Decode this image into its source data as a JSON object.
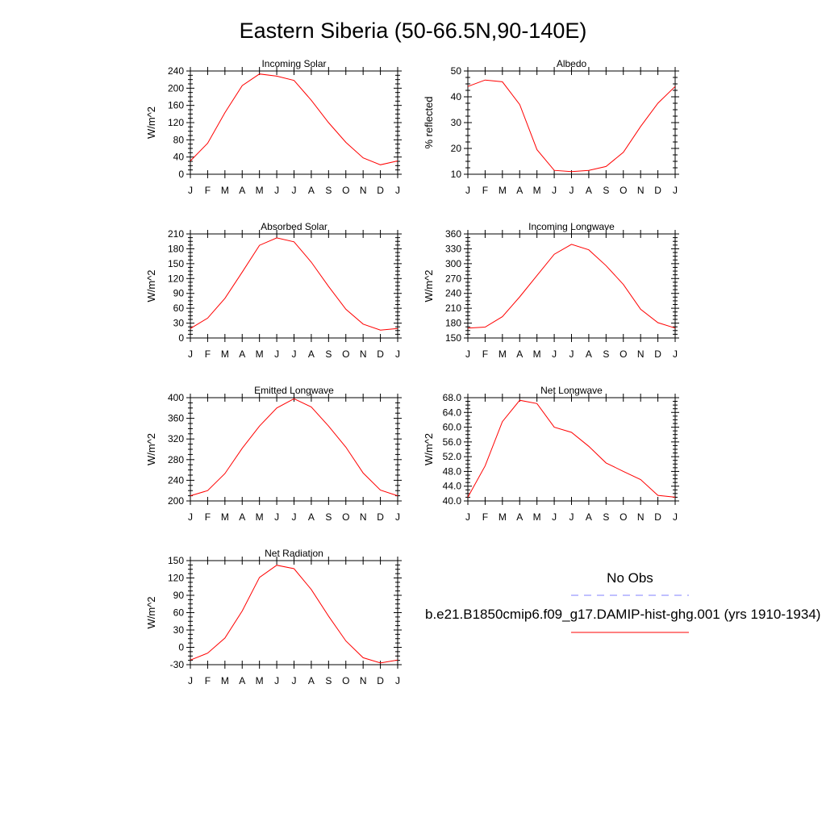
{
  "title": "Eastern Siberia (50-66.5N,90-140E)",
  "month_labels": [
    "J",
    "F",
    "M",
    "A",
    "M",
    "J",
    "J",
    "A",
    "S",
    "O",
    "N",
    "D",
    "J"
  ],
  "colors": {
    "model": "#ff0000",
    "obs": "#8080ff",
    "axes": "#000000"
  },
  "legend": {
    "obs_label": "No Obs",
    "model_label": "b.e21.B1850cmip6.f09_g17.DAMIP-hist-ghg.001 (yrs 1910-1934)"
  },
  "chart_data": [
    {
      "type": "line",
      "title": "Incoming Solar",
      "ylabel": "W/m^2",
      "ylim": [
        0,
        240
      ],
      "yticks": [
        "0",
        "40",
        "80",
        "120",
        "160",
        "200",
        "240"
      ],
      "x": [
        "J",
        "F",
        "M",
        "A",
        "M",
        "J",
        "J",
        "A",
        "S",
        "O",
        "N",
        "D",
        "J"
      ],
      "series": [
        {
          "values": [
            31,
            72,
            143,
            206,
            233,
            228,
            218,
            172,
            120,
            74,
            38,
            22,
            31
          ]
        }
      ]
    },
    {
      "type": "line",
      "title": "Albedo",
      "ylabel": "% reflected",
      "ylim": [
        10,
        50
      ],
      "yticks": [
        "10",
        "20",
        "30",
        "40",
        "50"
      ],
      "x": [
        "J",
        "F",
        "M",
        "A",
        "M",
        "J",
        "J",
        "A",
        "S",
        "O",
        "N",
        "D",
        "J"
      ],
      "series": [
        {
          "values": [
            44,
            46.5,
            45.8,
            37,
            19.5,
            11.5,
            11,
            11.5,
            13,
            18.5,
            28.5,
            37.5,
            44
          ]
        }
      ]
    },
    {
      "type": "line",
      "title": "Absorbed Solar",
      "ylabel": "W/m^2",
      "ylim": [
        0,
        210
      ],
      "yticks": [
        "0",
        "30",
        "60",
        "90",
        "120",
        "150",
        "180",
        "210"
      ],
      "x": [
        "J",
        "F",
        "M",
        "A",
        "M",
        "J",
        "J",
        "A",
        "S",
        "O",
        "N",
        "D",
        "J"
      ],
      "series": [
        {
          "values": [
            19,
            40,
            80,
            133,
            187,
            202,
            194,
            153,
            104,
            58,
            28,
            16,
            19
          ]
        }
      ]
    },
    {
      "type": "line",
      "title": "Incoming Longwave",
      "ylabel": "W/m^2",
      "ylim": [
        150,
        360
      ],
      "yticks": [
        "150",
        "180",
        "210",
        "240",
        "270",
        "300",
        "330",
        "360"
      ],
      "x": [
        "J",
        "F",
        "M",
        "A",
        "M",
        "J",
        "J",
        "A",
        "S",
        "O",
        "N",
        "D",
        "J"
      ],
      "series": [
        {
          "values": [
            170,
            172,
            193,
            233,
            276,
            319,
            339,
            328,
            296,
            258,
            208,
            181,
            170
          ]
        }
      ]
    },
    {
      "type": "line",
      "title": "Emitted Longwave",
      "ylabel": "W/m^2",
      "ylim": [
        200,
        400
      ],
      "yticks": [
        "200",
        "240",
        "280",
        "320",
        "360",
        "400"
      ],
      "x": [
        "J",
        "F",
        "M",
        "A",
        "M",
        "J",
        "J",
        "A",
        "S",
        "O",
        "N",
        "D",
        "J"
      ],
      "series": [
        {
          "values": [
            210,
            220,
            253,
            302,
            345,
            380,
            398,
            382,
            345,
            304,
            254,
            221,
            210
          ]
        }
      ]
    },
    {
      "type": "line",
      "title": "Net Longwave",
      "ylabel": "W/m^2",
      "ylim": [
        40,
        68
      ],
      "yticks": [
        "40.0",
        "44.0",
        "48.0",
        "52.0",
        "56.0",
        "60.0",
        "64.0",
        "68.0"
      ],
      "x": [
        "J",
        "F",
        "M",
        "A",
        "M",
        "J",
        "J",
        "A",
        "S",
        "O",
        "N",
        "D",
        "J"
      ],
      "series": [
        {
          "values": [
            41,
            49.5,
            61.5,
            67.3,
            66.4,
            60,
            58.6,
            54.8,
            50.3,
            48,
            45.8,
            41.5,
            41
          ]
        }
      ]
    },
    {
      "type": "line",
      "title": "Net Radiation",
      "ylabel": "W/m^2",
      "ylim": [
        -30,
        150
      ],
      "yticks": [
        "-30",
        "0",
        "30",
        "60",
        "90",
        "120",
        "150"
      ],
      "x": [
        "J",
        "F",
        "M",
        "A",
        "M",
        "J",
        "J",
        "A",
        "S",
        "O",
        "N",
        "D",
        "J"
      ],
      "series": [
        {
          "values": [
            -22,
            -10,
            16,
            63,
            121,
            142,
            136,
            100,
            54,
            11,
            -18,
            -27,
            -22
          ]
        }
      ]
    }
  ]
}
